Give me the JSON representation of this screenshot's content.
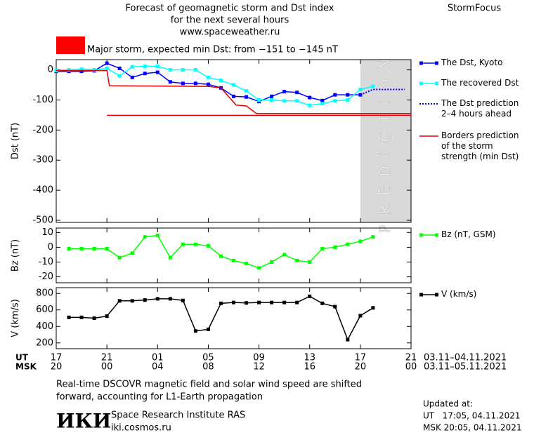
{
  "header": {
    "title": [
      "Forecast of geomagnetic storm and Dst index",
      "for the next several hours",
      "www.spaceweather.ru"
    ],
    "brand": "StormFocus",
    "storm_color": "#ff0000",
    "storm_text": "Major storm, expected min Dst: from −151 to −145 nT"
  },
  "chart_data": [
    {
      "type": "line",
      "ylabel": "Dst (nT)",
      "xlim": [
        0,
        28
      ],
      "ylim": [
        -507,
        34
      ],
      "yticks": [
        0,
        -100,
        -200,
        -300,
        -400,
        -500
      ],
      "shade": {
        "from": 24,
        "to": 28,
        "label": "PREDICTION",
        "color": "#d9d9d9"
      },
      "series": [
        {
          "name": "The Dst, Kyoto",
          "color": "#0000ff",
          "marker": "square",
          "style": "solid",
          "x": [
            0,
            1,
            2,
            3,
            4,
            5,
            6,
            7,
            8,
            9,
            10,
            11,
            12,
            13,
            14,
            15,
            16,
            17,
            18,
            19,
            20,
            21,
            22,
            23,
            24
          ],
          "values": [
            -5,
            -5,
            -5,
            -3,
            22,
            5,
            -25,
            -12,
            -8,
            -40,
            -45,
            -45,
            -48,
            -60,
            -88,
            -90,
            -105,
            -88,
            -72,
            -75,
            -92,
            -102,
            -83,
            -83,
            -83
          ]
        },
        {
          "name": "The recovered Dst",
          "color": "#00ffff",
          "marker": "square",
          "style": "solid",
          "x": [
            0,
            1,
            2,
            3,
            4,
            5,
            6,
            7,
            8,
            9,
            10,
            11,
            12,
            13,
            14,
            15,
            16,
            17,
            18,
            19,
            20,
            21,
            22,
            23,
            24,
            25
          ],
          "values": [
            -2,
            0,
            2,
            0,
            5,
            -20,
            10,
            12,
            12,
            0,
            0,
            0,
            -25,
            -35,
            -50,
            -70,
            -100,
            -100,
            -103,
            -103,
            -118,
            -112,
            -103,
            -100,
            -65,
            -55
          ]
        },
        {
          "name": "The Dst prediction\n2–4 hours ahead",
          "color": "#0000ff",
          "style": "dotted",
          "x": [
            24,
            25,
            27.5
          ],
          "values": [
            -83,
            -65,
            -65
          ]
        },
        {
          "name": "Borders prediction\nof the storm\nstrength (min Dst)",
          "color": "#e00000",
          "style": "solid",
          "x": [
            0,
            4,
            4.2,
            12,
            13,
            14.2,
            15,
            15.8,
            28
          ],
          "values": [
            -2,
            -2,
            -53,
            -55,
            -60,
            -117,
            -120,
            -145,
            -145
          ]
        },
        {
          "color": "#e00000",
          "style": "solid",
          "x": [
            4,
            28
          ],
          "values": [
            -151,
            -151
          ]
        }
      ]
    },
    {
      "type": "line",
      "ylabel": "Bz (nT)",
      "xlim": [
        0,
        28
      ],
      "ylim": [
        -24,
        13
      ],
      "yticks": [
        10,
        0,
        -10,
        -20
      ],
      "series": [
        {
          "name": "Bz (nT, GSM)",
          "color": "#00ff00",
          "marker": "square",
          "style": "solid",
          "x": [
            1,
            2,
            3,
            4,
            5,
            6,
            7,
            8,
            9,
            10,
            11,
            12,
            13,
            14,
            15,
            16,
            17,
            18,
            19,
            20,
            21,
            22,
            23,
            24,
            25
          ],
          "values": [
            -1,
            -1,
            -1,
            -1,
            -7,
            -4,
            7,
            8,
            -7,
            2,
            2,
            1,
            -6,
            -9,
            -11,
            -14,
            -10,
            -5,
            -9,
            -10,
            -1,
            0,
            2,
            4,
            7
          ]
        }
      ]
    },
    {
      "type": "line",
      "ylabel": "V (km/s)",
      "xlim": [
        0,
        28
      ],
      "ylim": [
        130,
        870
      ],
      "yticks": [
        800,
        600,
        400,
        200
      ],
      "xlabel": "UT",
      "x2label": "MSK",
      "xnote": "03.11–04.11.2021",
      "x2note": "03.11–05.11.2021",
      "xticks": [
        {
          "value": 0,
          "label": "17"
        },
        {
          "value": 4,
          "label": "21"
        },
        {
          "value": 8,
          "label": "01"
        },
        {
          "value": 12,
          "label": "05"
        },
        {
          "value": 16,
          "label": "09"
        },
        {
          "value": 20,
          "label": "13"
        },
        {
          "value": 24,
          "label": "17"
        },
        {
          "value": 28,
          "label": "21"
        }
      ],
      "x2ticks": [
        {
          "value": 0,
          "label": "20"
        },
        {
          "value": 4,
          "label": "00"
        },
        {
          "value": 8,
          "label": "04"
        },
        {
          "value": 12,
          "label": "08"
        },
        {
          "value": 16,
          "label": "12"
        },
        {
          "value": 20,
          "label": "16"
        },
        {
          "value": 24,
          "label": "20"
        },
        {
          "value": 28,
          "label": "00"
        }
      ],
      "series": [
        {
          "name": "V (km/s)",
          "color": "#000000",
          "marker": "square",
          "style": "solid",
          "x": [
            1,
            2,
            3,
            4,
            5,
            6,
            7,
            8,
            9,
            10,
            11,
            12,
            13,
            14,
            15,
            16,
            17,
            18,
            19,
            20,
            21,
            22,
            23,
            24,
            25
          ],
          "values": [
            510,
            510,
            500,
            525,
            710,
            710,
            720,
            735,
            735,
            715,
            345,
            365,
            680,
            690,
            685,
            690,
            690,
            690,
            690,
            765,
            680,
            640,
            240,
            530,
            625
          ]
        }
      ]
    }
  ],
  "footer": {
    "note": [
      "Real-time DSCOVR magnetic field and solar wind speed are shifted",
      "forward, accounting for L1-Earth propagation"
    ],
    "logo": "ИКИ",
    "institute": "Space Research Institute RAS",
    "site": "iki.cosmos.ru",
    "updated": [
      "Updated at:",
      "UT   17:05, 04.11.2021",
      "MSK 20:05, 04.11.2021"
    ]
  }
}
